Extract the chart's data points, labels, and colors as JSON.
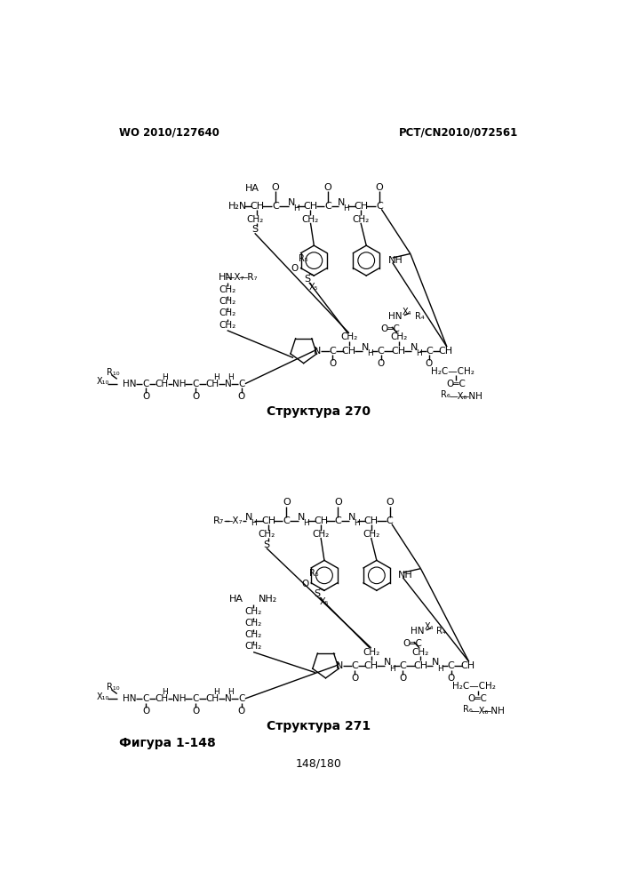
{
  "header_left": "WO 2010/127640",
  "header_right": "PCT/CN2010/072561",
  "footer_center": "148/180",
  "struct270_label": "Структура 270",
  "struct271_label": "Структура 271",
  "fig_label": "Фигура 1-148",
  "bg_color": "#ffffff",
  "text_color": "#000000"
}
